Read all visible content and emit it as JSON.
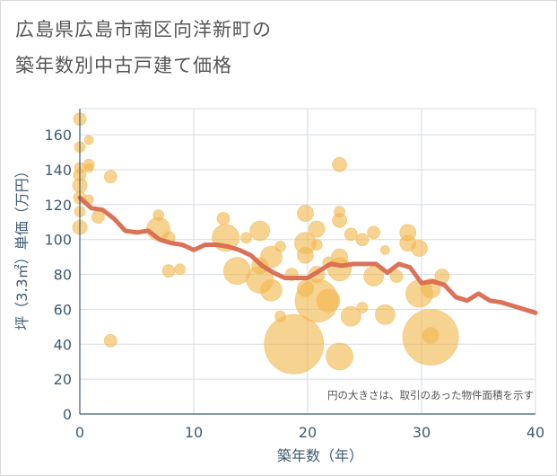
{
  "title_line1": "広島県広島市南区向洋新町の",
  "title_line2": "築年数別中古戸建て価格",
  "chart_data": {
    "type": "scatter",
    "xlabel": "築年数（年）",
    "ylabel": "坪（3.3㎡）単価（万円）",
    "xlim": [
      0,
      40
    ],
    "ylim": [
      0,
      175
    ],
    "xticks": [
      0,
      10,
      20,
      30,
      40
    ],
    "yticks": [
      0,
      20,
      40,
      60,
      80,
      100,
      120,
      140,
      160
    ],
    "grid": true,
    "note": "円の大きさは、取引のあった物件面積を示す",
    "colors": {
      "bubble": "#f2b54a",
      "trend": "#d96a4f",
      "grid": "#d5dbe2"
    },
    "points": [
      {
        "x": 0,
        "y": 169,
        "s": 7
      },
      {
        "x": 0,
        "y": 153,
        "s": 6
      },
      {
        "x": 0,
        "y": 141,
        "s": 6
      },
      {
        "x": 0,
        "y": 137,
        "s": 7
      },
      {
        "x": 0,
        "y": 131,
        "s": 8
      },
      {
        "x": 0,
        "y": 124,
        "s": 7
      },
      {
        "x": 0,
        "y": 116,
        "s": 6
      },
      {
        "x": 0,
        "y": 107,
        "s": 8
      },
      {
        "x": 0.8,
        "y": 157,
        "s": 5
      },
      {
        "x": 0.8,
        "y": 143,
        "s": 6
      },
      {
        "x": 0.8,
        "y": 141,
        "s": 5
      },
      {
        "x": 0.8,
        "y": 123,
        "s": 5
      },
      {
        "x": 1.6,
        "y": 113,
        "s": 7
      },
      {
        "x": 2.7,
        "y": 136,
        "s": 7
      },
      {
        "x": 2.7,
        "y": 42,
        "s": 7
      },
      {
        "x": 6.9,
        "y": 114,
        "s": 6
      },
      {
        "x": 6.9,
        "y": 106,
        "s": 13
      },
      {
        "x": 7.8,
        "y": 101,
        "s": 7
      },
      {
        "x": 7.8,
        "y": 82,
        "s": 7
      },
      {
        "x": 8.8,
        "y": 83,
        "s": 6
      },
      {
        "x": 12.6,
        "y": 112,
        "s": 7
      },
      {
        "x": 12.8,
        "y": 101,
        "s": 15
      },
      {
        "x": 13.8,
        "y": 82,
        "s": 15
      },
      {
        "x": 14.6,
        "y": 101,
        "s": 6
      },
      {
        "x": 15.8,
        "y": 105,
        "s": 11
      },
      {
        "x": 15.8,
        "y": 85,
        "s": 9
      },
      {
        "x": 15.8,
        "y": 77,
        "s": 15
      },
      {
        "x": 16.8,
        "y": 90,
        "s": 12
      },
      {
        "x": 16.8,
        "y": 71,
        "s": 12
      },
      {
        "x": 17.6,
        "y": 96,
        "s": 6
      },
      {
        "x": 17.6,
        "y": 56,
        "s": 6
      },
      {
        "x": 18.6,
        "y": 80,
        "s": 7
      },
      {
        "x": 18.8,
        "y": 40,
        "s": 33
      },
      {
        "x": 19.8,
        "y": 115,
        "s": 9
      },
      {
        "x": 19.8,
        "y": 98,
        "s": 12
      },
      {
        "x": 19.8,
        "y": 91,
        "s": 9
      },
      {
        "x": 19.8,
        "y": 72,
        "s": 9
      },
      {
        "x": 20.8,
        "y": 106,
        "s": 9
      },
      {
        "x": 20.8,
        "y": 97,
        "s": 6
      },
      {
        "x": 20.8,
        "y": 80,
        "s": 9
      },
      {
        "x": 20.8,
        "y": 65,
        "s": 24
      },
      {
        "x": 21.8,
        "y": 87,
        "s": 6
      },
      {
        "x": 21.8,
        "y": 65,
        "s": 13
      },
      {
        "x": 22.8,
        "y": 143,
        "s": 8
      },
      {
        "x": 22.8,
        "y": 116,
        "s": 6
      },
      {
        "x": 22.8,
        "y": 111,
        "s": 8
      },
      {
        "x": 22.8,
        "y": 90,
        "s": 9
      },
      {
        "x": 22.8,
        "y": 83,
        "s": 13
      },
      {
        "x": 22.8,
        "y": 33,
        "s": 15
      },
      {
        "x": 23.8,
        "y": 103,
        "s": 7
      },
      {
        "x": 23.8,
        "y": 56,
        "s": 11
      },
      {
        "x": 24.8,
        "y": 100,
        "s": 7
      },
      {
        "x": 24.8,
        "y": 61,
        "s": 6
      },
      {
        "x": 25.8,
        "y": 104,
        "s": 7
      },
      {
        "x": 25.8,
        "y": 79,
        "s": 11
      },
      {
        "x": 26.8,
        "y": 94,
        "s": 5
      },
      {
        "x": 26.8,
        "y": 57,
        "s": 11
      },
      {
        "x": 27.8,
        "y": 79,
        "s": 7
      },
      {
        "x": 28.8,
        "y": 104,
        "s": 9
      },
      {
        "x": 28.8,
        "y": 98,
        "s": 9
      },
      {
        "x": 29.8,
        "y": 95,
        "s": 9
      },
      {
        "x": 29.8,
        "y": 69,
        "s": 15
      },
      {
        "x": 30.8,
        "y": 72,
        "s": 11
      },
      {
        "x": 30.8,
        "y": 44,
        "s": 31
      },
      {
        "x": 30.8,
        "y": 45,
        "s": 9
      },
      {
        "x": 31.8,
        "y": 79,
        "s": 8
      }
    ],
    "trend": {
      "x": [
        0,
        1,
        2,
        3,
        4,
        5,
        6,
        7,
        8,
        9,
        10,
        11,
        12,
        13,
        14,
        15,
        16,
        17,
        18,
        19,
        20,
        21,
        22,
        23,
        24,
        25,
        26,
        27,
        28,
        29,
        30,
        31,
        32,
        33,
        34,
        35,
        36,
        37,
        38,
        39,
        40
      ],
      "y": [
        124,
        118,
        117,
        112,
        105,
        104,
        105,
        100,
        98,
        97,
        94,
        97,
        97,
        96,
        94,
        91,
        85,
        81,
        78,
        78,
        78,
        82,
        86,
        85,
        86,
        86,
        86,
        81,
        86,
        84,
        75,
        76,
        74,
        67,
        65,
        69,
        65,
        64,
        62,
        60,
        58
      ]
    }
  }
}
